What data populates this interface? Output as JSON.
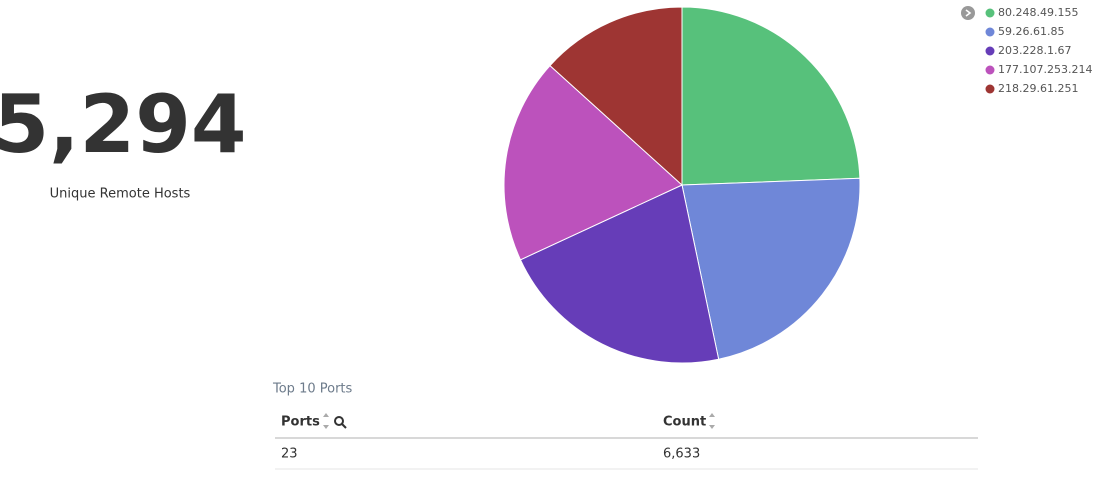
{
  "metric": {
    "value": "5,294",
    "label": "Unique Remote Hosts"
  },
  "chart_data": {
    "type": "pie",
    "categories": [
      "80.248.49.155",
      "59.26.61.85",
      "203.228.1.67",
      "177.107.253.214",
      "218.29.61.251"
    ],
    "values": [
      24.4,
      22.3,
      21.4,
      18.6,
      13.3
    ],
    "colors": [
      "#57c17b",
      "#6f87d8",
      "#663db8",
      "#bc52bc",
      "#9e3533"
    ],
    "legend": "top-right"
  },
  "table": {
    "title": "Top 10 Ports",
    "columns": [
      "Ports",
      "Count"
    ],
    "rows": [
      [
        "23",
        "6,633"
      ]
    ]
  }
}
